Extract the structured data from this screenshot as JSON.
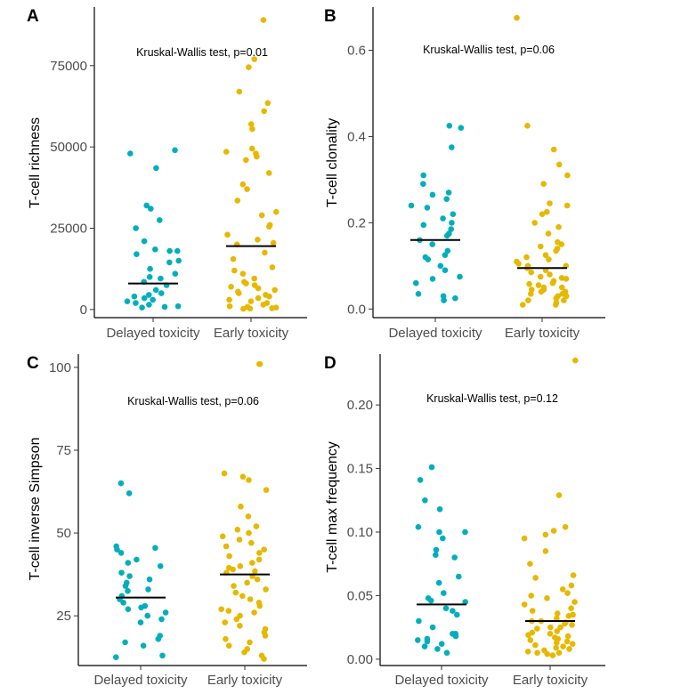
{
  "colors": {
    "delayed": "#00AFBB",
    "early": "#E7B800",
    "axis": "#000000",
    "median": "#000000"
  },
  "chart_data": [
    {
      "panel": "A",
      "type": "scatter",
      "categories": [
        "Delayed toxicity",
        "Early toxicity"
      ],
      "ylabel": "T-cell richness",
      "ylim": [
        -2500,
        93000
      ],
      "yticks": [
        0,
        25000,
        50000,
        75000
      ],
      "ytick_labels": [
        "0",
        "25000",
        "50000",
        "75000"
      ],
      "annotation": "Kruskal-Wallis test, p=0.01",
      "series": [
        {
          "name": "Delayed toxicity",
          "median": 8000,
          "values": [
            49000,
            48000,
            43500,
            32000,
            31000,
            27500,
            25000,
            21000,
            18500,
            18000,
            18000,
            17000,
            15000,
            14500,
            12500,
            11000,
            10000,
            9500,
            8500,
            7500,
            6000,
            5000,
            4500,
            4000,
            3500,
            3000,
            2500,
            2000,
            1500,
            1000,
            800,
            600
          ]
        },
        {
          "name": "Early toxicity",
          "median": 19500,
          "values": [
            89000,
            77000,
            74500,
            67000,
            63500,
            61000,
            57000,
            55500,
            49500,
            48500,
            48000,
            47000,
            46000,
            42000,
            38500,
            37000,
            33500,
            30000,
            29000,
            26000,
            25500,
            23000,
            21500,
            20500,
            20000,
            17500,
            15500,
            13000,
            12000,
            11000,
            9500,
            8500,
            8000,
            7500,
            7000,
            6500,
            6000,
            5500,
            5000,
            4500,
            4000,
            3500,
            3000,
            2500,
            2000,
            1500,
            1000,
            800,
            600,
            400,
            300,
            200
          ]
        }
      ]
    },
    {
      "panel": "B",
      "type": "scatter",
      "categories": [
        "Delayed toxicity",
        "Early toxicity"
      ],
      "ylabel": "T-cell clonality",
      "ylim": [
        -0.02,
        0.7
      ],
      "yticks": [
        0,
        0.2,
        0.4,
        0.6
      ],
      "ytick_labels": [
        "0.0",
        "0.2",
        "0.4",
        "0.6"
      ],
      "annotation": "Kruskal-Wallis test, p=0.06",
      "series": [
        {
          "name": "Delayed toxicity",
          "median": 0.16,
          "values": [
            0.425,
            0.42,
            0.375,
            0.31,
            0.29,
            0.27,
            0.265,
            0.255,
            0.24,
            0.235,
            0.22,
            0.21,
            0.2,
            0.195,
            0.185,
            0.175,
            0.17,
            0.16,
            0.15,
            0.135,
            0.125,
            0.12,
            0.115,
            0.1,
            0.09,
            0.075,
            0.07,
            0.06,
            0.035,
            0.03,
            0.025,
            0.02
          ]
        },
        {
          "name": "Early toxicity",
          "median": 0.095,
          "values": [
            0.675,
            0.425,
            0.37,
            0.335,
            0.31,
            0.29,
            0.245,
            0.24,
            0.225,
            0.22,
            0.2,
            0.19,
            0.175,
            0.155,
            0.15,
            0.145,
            0.14,
            0.135,
            0.125,
            0.12,
            0.115,
            0.11,
            0.105,
            0.1,
            0.1,
            0.095,
            0.09,
            0.085,
            0.08,
            0.075,
            0.072,
            0.07,
            0.065,
            0.06,
            0.058,
            0.055,
            0.05,
            0.05,
            0.045,
            0.04,
            0.04,
            0.035,
            0.03,
            0.03,
            0.025,
            0.02,
            0.02,
            0.015,
            0.01,
            0.01,
            0.035,
            0.045
          ]
        }
      ]
    },
    {
      "panel": "C",
      "type": "scatter",
      "categories": [
        "Delayed toxicity",
        "Early toxicity"
      ],
      "ylabel": "T-cell inverse Simpson",
      "ylim": [
        10,
        104
      ],
      "yticks": [
        25,
        50,
        75,
        100
      ],
      "ytick_labels": [
        "25",
        "50",
        "75",
        "100"
      ],
      "annotation": "Kruskal-Wallis test, p=0.06",
      "series": [
        {
          "name": "Delayed toxicity",
          "median": 30.5,
          "values": [
            65,
            62,
            46,
            45.5,
            45,
            44,
            42,
            41,
            40,
            38,
            37,
            36,
            35,
            34,
            33,
            32.5,
            31,
            30,
            29,
            28,
            27.5,
            27,
            26,
            25,
            24,
            23,
            19,
            18,
            17,
            16,
            13,
            12.5
          ]
        },
        {
          "name": "Early toxicity",
          "median": 37.5,
          "values": [
            101,
            101,
            68,
            67,
            66,
            63,
            58,
            55,
            52,
            51,
            50,
            49,
            48,
            47,
            46,
            45,
            44,
            43,
            42,
            41,
            40,
            39.5,
            39,
            38.5,
            38,
            37,
            36,
            35,
            34,
            33,
            32,
            31,
            30,
            29,
            28,
            27,
            26.5,
            26,
            25,
            24,
            23,
            22,
            21,
            20,
            19,
            18,
            17,
            16,
            15,
            14,
            13,
            12
          ]
        }
      ]
    },
    {
      "panel": "D",
      "type": "scatter",
      "categories": [
        "Delayed toxicity",
        "Early toxicity"
      ],
      "ylabel": "T-cell max frequency",
      "ylim": [
        -0.005,
        0.24
      ],
      "yticks": [
        0,
        0.05,
        0.1,
        0.15,
        0.2
      ],
      "ytick_labels": [
        "0.00",
        "0.05",
        "0.10",
        "0.15",
        "0.20"
      ],
      "annotation": "Kruskal-Wallis test, p=0.12",
      "series": [
        {
          "name": "Delayed toxicity",
          "median": 0.043,
          "values": [
            0.151,
            0.141,
            0.125,
            0.118,
            0.104,
            0.1,
            0.1,
            0.095,
            0.086,
            0.082,
            0.08,
            0.065,
            0.06,
            0.052,
            0.048,
            0.046,
            0.045,
            0.04,
            0.038,
            0.035,
            0.03,
            0.025,
            0.02,
            0.02,
            0.018,
            0.016,
            0.015,
            0.014,
            0.012,
            0.01,
            0.008,
            0.005
          ]
        },
        {
          "name": "Early toxicity",
          "median": 0.03,
          "values": [
            0.235,
            0.129,
            0.104,
            0.101,
            0.098,
            0.095,
            0.085,
            0.075,
            0.066,
            0.064,
            0.058,
            0.055,
            0.052,
            0.05,
            0.048,
            0.045,
            0.043,
            0.04,
            0.038,
            0.036,
            0.035,
            0.034,
            0.032,
            0.03,
            0.03,
            0.029,
            0.028,
            0.027,
            0.025,
            0.024,
            0.022,
            0.021,
            0.02,
            0.019,
            0.018,
            0.017,
            0.016,
            0.015,
            0.014,
            0.013,
            0.012,
            0.011,
            0.01,
            0.009,
            0.008,
            0.007,
            0.006,
            0.005,
            0.005,
            0.004,
            0.003,
            0.025
          ]
        }
      ]
    }
  ]
}
